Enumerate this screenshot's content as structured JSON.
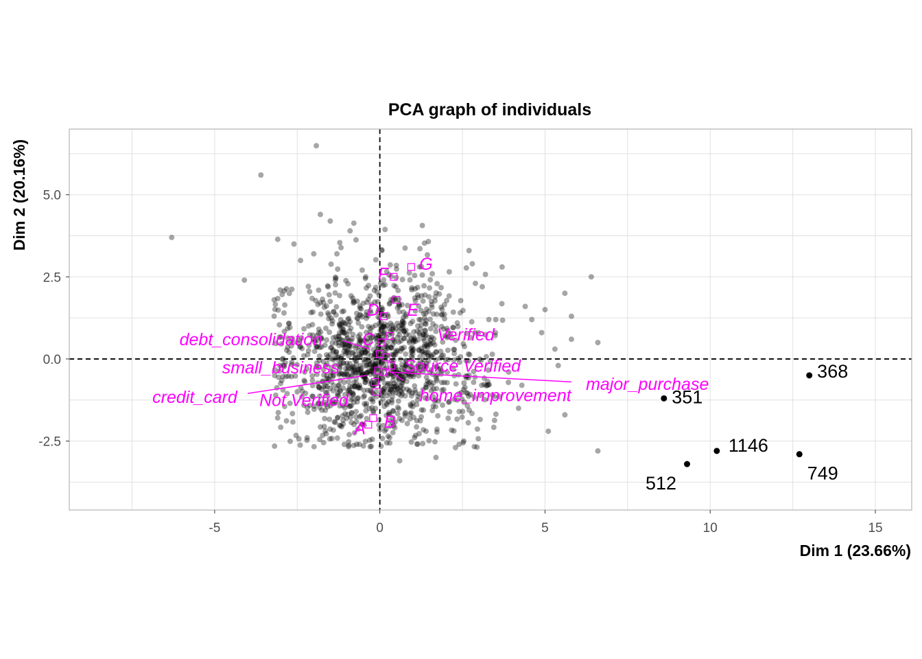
{
  "chart_data": {
    "type": "scatter",
    "title": "PCA graph of individuals",
    "xlabel": "Dim 1 (23.66%)",
    "ylabel": "Dim 2 (20.16%)",
    "xlim": [
      -9.4,
      16.1
    ],
    "ylim": [
      -4.6,
      7.0
    ],
    "x_ticks": [
      -5,
      0,
      5,
      10,
      15
    ],
    "x_tick_labels": [
      "-5",
      "0",
      "5",
      "10",
      "15"
    ],
    "y_ticks": [
      -2.5,
      0.0,
      2.5,
      5.0
    ],
    "y_tick_labels": [
      "-2.5",
      "0.0",
      "2.5",
      "5.0"
    ],
    "grid": true,
    "reference_lines": {
      "x": 0,
      "y": 0,
      "style": "dashed"
    },
    "colors": {
      "points": "#000000",
      "categories": "#ff00ff",
      "grid": "#e0e0e0",
      "panel_border": "#b3b3b3"
    },
    "cloud": {
      "count": 1300,
      "center": [
        0.0,
        0.0
      ],
      "sd": [
        1.5,
        1.25
      ],
      "opacity": 0.35,
      "seed": 7
    },
    "cloud_outliers": [
      [
        -6.3,
        3.7
      ],
      [
        -3.6,
        5.6
      ],
      [
        -4.1,
        2.4
      ],
      [
        -3.2,
        1.8
      ],
      [
        -2.6,
        3.5
      ],
      [
        -2.4,
        3.0
      ],
      [
        -1.8,
        4.4
      ],
      [
        -1.5,
        4.2
      ],
      [
        -1.3,
        3.2
      ],
      [
        -0.9,
        3.9
      ],
      [
        -2.0,
        3.2
      ],
      [
        -2.9,
        1.4
      ],
      [
        -2.5,
        -1.0
      ],
      [
        1.2,
        2.8
      ],
      [
        2.8,
        2.9
      ],
      [
        2.7,
        3.3
      ],
      [
        3.7,
        2.8
      ],
      [
        3.1,
        2.2
      ],
      [
        4.4,
        1.6
      ],
      [
        5.0,
        1.5
      ],
      [
        5.6,
        2.0
      ],
      [
        5.8,
        1.3
      ],
      [
        6.4,
        2.5
      ],
      [
        3.3,
        1.2
      ],
      [
        3.9,
        -0.4
      ],
      [
        4.3,
        -0.8
      ],
      [
        5.3,
        0.3
      ],
      [
        6.6,
        0.5
      ],
      [
        5.8,
        0.6
      ],
      [
        4.6,
        1.2
      ],
      [
        5.4,
        -0.2
      ],
      [
        4.9,
        0.8
      ],
      [
        6.6,
        -2.8
      ],
      [
        5.1,
        -2.2
      ],
      [
        5.6,
        -1.7
      ],
      [
        4.2,
        -1.5
      ],
      [
        2.4,
        -1.6
      ],
      [
        2.4,
        -2.6
      ],
      [
        1.7,
        -3.0
      ],
      [
        3.4,
        -1.1
      ],
      [
        2.1,
        -1.3
      ],
      [
        3.5,
        0.8
      ],
      [
        -0.7,
        -2.6
      ],
      [
        -2.2,
        -2.4
      ],
      [
        1.4,
        -2.2
      ],
      [
        0.6,
        -3.1
      ]
    ],
    "highlighted_individuals": [
      {
        "label": "368",
        "x": 13.0,
        "y": -0.5
      },
      {
        "label": "351",
        "x": 8.6,
        "y": -1.2
      },
      {
        "label": "1146",
        "x": 10.2,
        "y": -2.8
      },
      {
        "label": "749",
        "x": 12.7,
        "y": -2.9
      },
      {
        "label": "512",
        "x": 9.3,
        "y": -3.2
      }
    ],
    "categories": [
      {
        "label": "G",
        "x": 0.95,
        "y": 2.8
      },
      {
        "label": "F",
        "x": 0.42,
        "y": 2.5
      },
      {
        "label": "E",
        "x": 0.5,
        "y": 1.8
      },
      {
        "label": "D",
        "x": 0.12,
        "y": 1.3
      },
      {
        "label": "Verified",
        "x": 0.3,
        "y": 0.7
      },
      {
        "label": "C",
        "x": 0.05,
        "y": 0.5
      },
      {
        "label": "debt_consolidation",
        "x": 0.0,
        "y": 0.15
      },
      {
        "label": "Source Verified",
        "x": 0.2,
        "y": 0.05
      },
      {
        "label": "small_business",
        "x": -0.05,
        "y": -0.35
      },
      {
        "label": "major_purchase",
        "x": 0.35,
        "y": -0.2
      },
      {
        "label": "credit_card",
        "x": -0.15,
        "y": -0.7
      },
      {
        "label": "home_improvement",
        "x": 0.1,
        "y": -0.4
      },
      {
        "label": "Not Verified",
        "x": -0.1,
        "y": -1.0
      },
      {
        "label": "B",
        "x": -0.2,
        "y": -1.8
      },
      {
        "label": "A",
        "x": -0.35,
        "y": -2.0
      }
    ],
    "label_texts": [
      {
        "text": "G",
        "x": 1.4,
        "y": 2.9
      },
      {
        "text": "F",
        "x": 0.1,
        "y": 2.6
      },
      {
        "text": "E",
        "x": 1.0,
        "y": 1.5
      },
      {
        "text": "D",
        "x": -0.2,
        "y": 1.5
      },
      {
        "text": "Verified",
        "x": 2.6,
        "y": 0.75
      },
      {
        "text": "C",
        "x": -0.35,
        "y": 0.6
      },
      {
        "text": "debt_consolidation",
        "x": -3.9,
        "y": 0.6
      },
      {
        "text": "Source Verified",
        "x": 2.5,
        "y": -0.2
      },
      {
        "text": "small_business",
        "x": -3.0,
        "y": -0.25
      },
      {
        "text": "major_purchase",
        "x": 8.1,
        "y": -0.75
      },
      {
        "text": "credit_card",
        "x": -5.6,
        "y": -1.15
      },
      {
        "text": "home_improvement",
        "x": 3.5,
        "y": -1.1
      },
      {
        "text": "Not Verified",
        "x": -2.3,
        "y": -1.25
      },
      {
        "text": "B",
        "x": 0.3,
        "y": -1.9
      },
      {
        "text": "A",
        "x": -0.6,
        "y": -2.1
      }
    ],
    "label_segments": [
      {
        "from": [
          -1.1,
          0.55
        ],
        "to": [
          -0.3,
          0.3
        ]
      },
      {
        "from": [
          -4.0,
          -1.05
        ],
        "to": [
          -0.4,
          -0.5
        ]
      },
      {
        "from": [
          0.3,
          -0.4
        ],
        "to": [
          5.8,
          -0.7
        ]
      },
      {
        "from": [
          0.2,
          -0.3
        ],
        "to": [
          0.7,
          -0.65
        ]
      }
    ]
  }
}
